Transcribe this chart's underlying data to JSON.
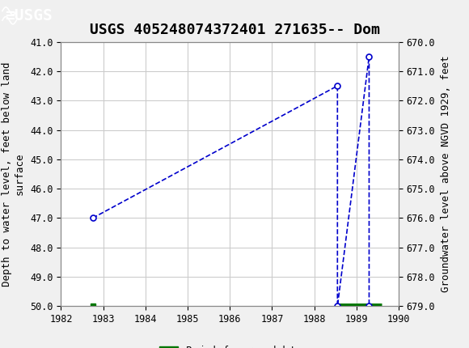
{
  "title": "USGS 405248074372401 271635-- Dom",
  "left_ylabel": "Depth to water level, feet below land\nsurface",
  "right_ylabel": "Groundwater level above NGVD 1929, feet",
  "xlabel": "",
  "xlim": [
    1982,
    1990
  ],
  "ylim_left": [
    41.0,
    50.0
  ],
  "ylim_right": [
    670.0,
    679.0
  ],
  "yticks_left": [
    41.0,
    42.0,
    43.0,
    44.0,
    45.0,
    46.0,
    47.0,
    48.0,
    49.0,
    50.0
  ],
  "yticks_right": [
    670.0,
    671.0,
    672.0,
    673.0,
    674.0,
    675.0,
    676.0,
    677.0,
    678.0,
    679.0
  ],
  "xticks": [
    1982,
    1983,
    1984,
    1985,
    1986,
    1987,
    1988,
    1989,
    1990
  ],
  "data_x": [
    1982.75,
    1988.55,
    1988.55,
    1989.3,
    1989.3
  ],
  "data_y": [
    47.0,
    42.5,
    50.0,
    41.5,
    50.0
  ],
  "approved_bar_start": 1988.55,
  "approved_bar_end": 1989.6,
  "approved_bar_y": 50.0,
  "dot_x": 1982.75,
  "dot_y": 50.0,
  "line_color": "#0000cc",
  "marker_color": "#0000cc",
  "approved_color": "#007700",
  "dot_color": "#007700",
  "header_color": "#1a6b3c",
  "bg_color": "#f0f0f0",
  "plot_bg_color": "#ffffff",
  "grid_color": "#cccccc",
  "title_fontsize": 13,
  "axis_label_fontsize": 9,
  "tick_fontsize": 8.5
}
